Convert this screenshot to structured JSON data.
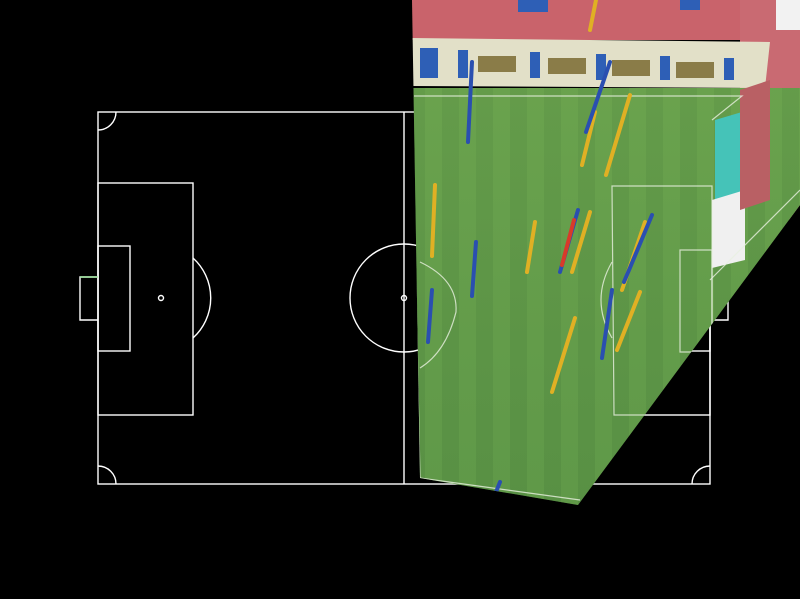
{
  "colors": {
    "background": "#000000",
    "pitch_lines": "#ffffff",
    "goal_lines": "#9be39b",
    "grass": "#5e9448",
    "grass_stripe": "#6aa24f",
    "track": "#c9636b",
    "stand": "#c96a72",
    "hoarding": "#e2e0c8",
    "team_a": "#e0b024",
    "team_b": "#2a4fb0",
    "referee": "#d83a2a"
  },
  "icons": [
    "pitch-template",
    "warped-broadcast-frame"
  ],
  "players": [
    {
      "team": "a"
    },
    {
      "team": "a"
    },
    {
      "team": "a"
    },
    {
      "team": "a"
    },
    {
      "team": "a"
    },
    {
      "team": "a"
    },
    {
      "team": "a"
    },
    {
      "team": "a"
    },
    {
      "team": "a"
    },
    {
      "team": "b"
    },
    {
      "team": "b"
    },
    {
      "team": "b"
    },
    {
      "team": "b"
    },
    {
      "team": "b"
    },
    {
      "team": "b"
    },
    {
      "team": "b"
    },
    {
      "team": "referee"
    }
  ]
}
